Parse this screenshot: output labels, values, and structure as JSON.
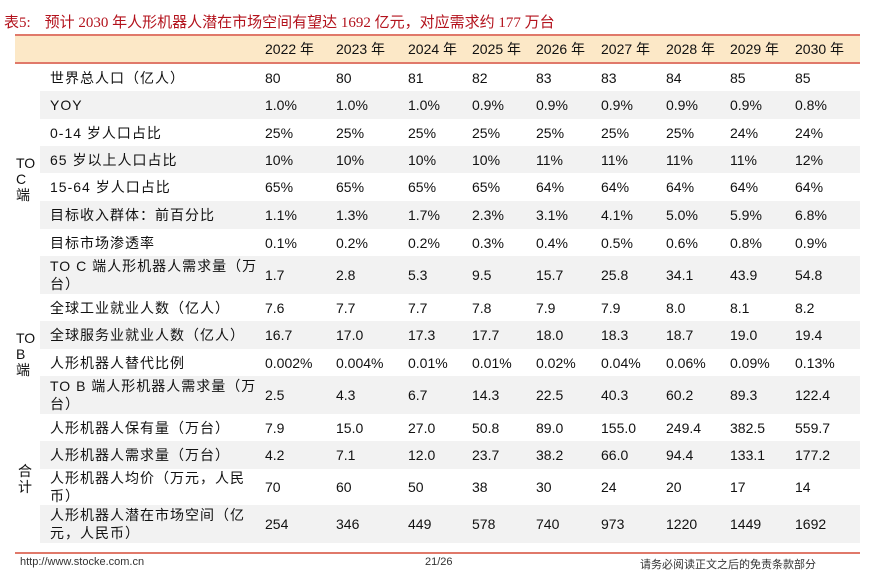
{
  "title": {
    "number": "表5:",
    "text": "预计 2030 年人形机器人潜在市场空间有望达 1692 亿元，对应需求约 177 万台"
  },
  "header": [
    "2022 年",
    "2023 年",
    "2024 年",
    "2025 年",
    "2026 年",
    "2027 年",
    "2028 年",
    "2029 年",
    "2030 年"
  ],
  "groups": {
    "toc": "TO C 端",
    "tob": "TO B 端",
    "total": "合计"
  },
  "rows": [
    {
      "label": "世界总人口（亿人）",
      "values": [
        "80",
        "80",
        "81",
        "82",
        "83",
        "83",
        "84",
        "85",
        "85"
      ]
    },
    {
      "label": "YOY",
      "values": [
        "1.0%",
        "1.0%",
        "1.0%",
        "0.9%",
        "0.9%",
        "0.9%",
        "0.9%",
        "0.9%",
        "0.8%"
      ]
    },
    {
      "label": "0-14 岁人口占比",
      "values": [
        "25%",
        "25%",
        "25%",
        "25%",
        "25%",
        "25%",
        "25%",
        "24%",
        "24%"
      ]
    },
    {
      "label": "65 岁以上人口占比",
      "values": [
        "10%",
        "10%",
        "10%",
        "10%",
        "11%",
        "11%",
        "11%",
        "11%",
        "12%"
      ]
    },
    {
      "label": "15-64 岁人口占比",
      "values": [
        "65%",
        "65%",
        "65%",
        "65%",
        "64%",
        "64%",
        "64%",
        "64%",
        "64%"
      ]
    },
    {
      "label": "目标收入群体：前百分比",
      "values": [
        "1.1%",
        "1.3%",
        "1.7%",
        "2.3%",
        "3.1%",
        "4.1%",
        "5.0%",
        "5.9%",
        "6.8%"
      ]
    },
    {
      "label": "目标市场渗透率",
      "values": [
        "0.1%",
        "0.2%",
        "0.2%",
        "0.3%",
        "0.4%",
        "0.5%",
        "0.6%",
        "0.8%",
        "0.9%"
      ]
    },
    {
      "label": "TO C 端人形机器人需求量（万台）",
      "values": [
        "1.7",
        "2.8",
        "5.3",
        "9.5",
        "15.7",
        "25.8",
        "34.1",
        "43.9",
        "54.8"
      ]
    },
    {
      "label": "全球工业就业人数（亿人）",
      "values": [
        "7.6",
        "7.7",
        "7.7",
        "7.8",
        "7.9",
        "7.9",
        "8.0",
        "8.1",
        "8.2"
      ]
    },
    {
      "label": "全球服务业就业人数（亿人）",
      "values": [
        "16.7",
        "17.0",
        "17.3",
        "17.7",
        "18.0",
        "18.3",
        "18.7",
        "19.0",
        "19.4"
      ]
    },
    {
      "label": "人形机器人替代比例",
      "values": [
        "0.002%",
        "0.004%",
        "0.01%",
        "0.01%",
        "0.02%",
        "0.04%",
        "0.06%",
        "0.09%",
        "0.13%"
      ]
    },
    {
      "label": "TO B 端人形机器人需求量（万台）",
      "values": [
        "2.5",
        "4.3",
        "6.7",
        "14.3",
        "22.5",
        "40.3",
        "60.2",
        "89.3",
        "122.4"
      ]
    },
    {
      "label": "人形机器人保有量（万台）",
      "values": [
        "7.9",
        "15.0",
        "27.0",
        "50.8",
        "89.0",
        "155.0",
        "249.4",
        "382.5",
        "559.7"
      ]
    },
    {
      "label": "人形机器人需求量（万台）",
      "values": [
        "4.2",
        "7.1",
        "12.0",
        "23.7",
        "38.2",
        "66.0",
        "94.4",
        "133.1",
        "177.2"
      ]
    },
    {
      "label": "人形机器人均价（万元，人民币）",
      "values": [
        "70",
        "60",
        "50",
        "38",
        "30",
        "24",
        "20",
        "17",
        "14"
      ]
    },
    {
      "label": "人形机器人潜在市场空间（亿元，人民币）",
      "values": [
        "254",
        "346",
        "449",
        "578",
        "740",
        "973",
        "1220",
        "1449",
        "1692"
      ]
    }
  ],
  "footer": {
    "url": "http://www.stocke.com.cn",
    "page": "21/26",
    "disclaimer": "请务必阅读正文之后的免责条款部分"
  },
  "colors": {
    "title": "#b3121c",
    "header_bg": "#fce8c7",
    "rule": "#e0796a",
    "stripe": "#f2f2f2"
  }
}
